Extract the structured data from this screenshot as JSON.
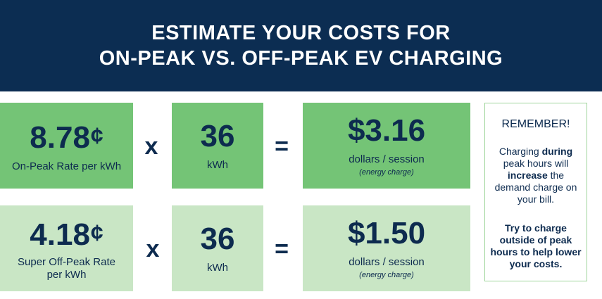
{
  "banner": {
    "line1": "ESTIMATE YOUR COSTS FOR",
    "line2": "ON-PEAK VS. OFF-PEAK EV CHARGING"
  },
  "rows": [
    {
      "rate_value": "8.78",
      "rate_unit": "¢",
      "rate_label": "On-Peak Rate per kWh",
      "multiply": "x",
      "kwh_value": "36",
      "kwh_label": "kWh",
      "equals": "=",
      "cost_value": "$3.16",
      "cost_label": "dollars / session",
      "cost_note": "(energy charge)"
    },
    {
      "rate_value": "4.18",
      "rate_unit": "¢",
      "rate_label_line1": "Super Off-Peak Rate",
      "rate_label_line2": "per kWh",
      "multiply": "x",
      "kwh_value": "36",
      "kwh_label": "kWh",
      "equals": "=",
      "cost_value": "$1.50",
      "cost_label": "dollars / session",
      "cost_note": "(energy charge)"
    }
  ],
  "remember": {
    "heading": "REMEMBER!",
    "body_1": "Charging",
    "body_bold_1": "during",
    "body_2": "peak hours will",
    "body_bold_2": "increase",
    "body_3": "the demand charge on your bill.",
    "tip": "Try to charge outside of peak hours to help lower your costs."
  },
  "colors": {
    "navy": "#0c2d52",
    "green_dark": "#74c476",
    "green_light": "#c9e6c5",
    "text": "#0d2b4f"
  }
}
